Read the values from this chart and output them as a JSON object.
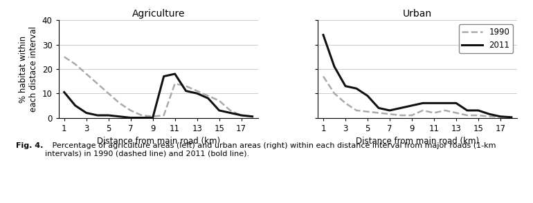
{
  "x": [
    1,
    2,
    3,
    4,
    5,
    6,
    7,
    8,
    9,
    10,
    11,
    12,
    13,
    14,
    15,
    16,
    17,
    18
  ],
  "agri_1990": [
    25,
    22,
    18,
    14,
    10,
    6,
    3,
    1,
    0.5,
    1,
    14,
    13,
    11,
    9,
    7,
    3,
    1,
    0.5
  ],
  "agri_2011": [
    10.5,
    5,
    2,
    1,
    1,
    0.5,
    0,
    0,
    0,
    17,
    18,
    11,
    10,
    8,
    3,
    2,
    1,
    0.5
  ],
  "urban_1990": [
    17,
    10,
    6,
    3,
    2.5,
    2,
    1.5,
    1,
    1,
    3,
    2,
    3,
    2,
    1,
    1,
    0.5,
    0.3,
    0.2
  ],
  "urban_2011": [
    34,
    21,
    13,
    12,
    9,
    4,
    3,
    4,
    5,
    6,
    6,
    6,
    6,
    3,
    3,
    1.5,
    0.5,
    0.2
  ],
  "xlabel": "Distance from main road (km)",
  "ylabel": "% habitat within\neach distace interval",
  "title_left": "Agriculture",
  "title_right": "Urban",
  "xticks": [
    1,
    3,
    5,
    7,
    9,
    11,
    13,
    15,
    17
  ],
  "ylim": [
    0,
    40
  ],
  "yticks": [
    0,
    10,
    20,
    30,
    40
  ],
  "legend_labels": [
    "1990",
    "2011"
  ],
  "line_color_1990": "#aaaaaa",
  "line_color_2011": "#111111",
  "bg_color": "#ffffff",
  "caption_bold": "Fig. 4.",
  "caption_normal": "   Percentage of agriculture areas (left) and urban areas (right) within each distance interval from major roads (1-km\nintervals) in 1990 (dashed line) and 2011 (bold line)."
}
